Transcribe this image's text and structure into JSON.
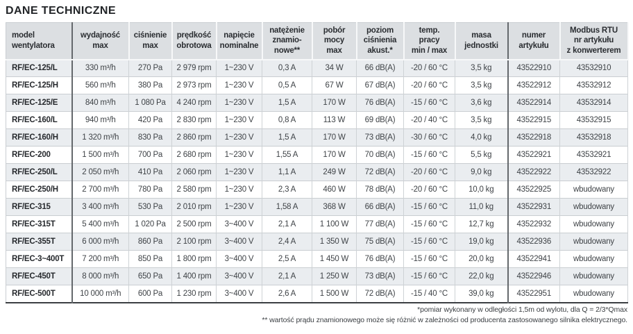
{
  "page": {
    "title": "DANE TECHNICZNE"
  },
  "colors": {
    "header_bg": "#dcdfe2",
    "row_stripe_bg": "#eaedf0",
    "section_divider": "#64686c",
    "table_bottom_border": "#3b3e42"
  },
  "table": {
    "columns": [
      {
        "key": "model",
        "label": "model\nwentylatora"
      },
      {
        "key": "wydajnosc-max",
        "label": "wydajność\nmax"
      },
      {
        "key": "cisnienie-max",
        "label": "ciśnienie\nmax"
      },
      {
        "key": "predkosc-obrotowa",
        "label": "prędkość\nobrotowa"
      },
      {
        "key": "napiecie-nominalne",
        "label": "napięcie\nnominalne"
      },
      {
        "key": "natezenie-znamionowe",
        "label": "natężenie\nznamio-\nnowe**"
      },
      {
        "key": "pobor-mocy-max",
        "label": "pobór\nmocy\nmax"
      },
      {
        "key": "poziom-cisnienia",
        "label": "poziom\nciśnienia\nakust.*"
      },
      {
        "key": "temp-pracy",
        "label": "temp.\npracy\nmin / max"
      },
      {
        "key": "masa-jednostki",
        "label": "masa\njednostki"
      },
      {
        "key": "numer-artykulu",
        "label": "numer\nartykułu"
      },
      {
        "key": "modbus-rtu",
        "label": "Modbus RTU\nnr artykułu\nz konwerterem"
      }
    ],
    "rows": [
      [
        "RF/EC-125/L",
        "330 m³/h",
        "270 Pa",
        "2 979 rpm",
        "1~230 V",
        "0,3 A",
        "34 W",
        "66 dB(A)",
        "-20 / 60 °C",
        "3,5 kg",
        "43522910",
        "43532910"
      ],
      [
        "RF/EC-125/H",
        "560 m³/h",
        "380 Pa",
        "2 973 rpm",
        "1~230 V",
        "0,5 A",
        "67 W",
        "67 dB(A)",
        "-20 / 60 °C",
        "3,5 kg",
        "43522912",
        "43532912"
      ],
      [
        "RF/EC-125/E",
        "840 m³/h",
        "1 080 Pa",
        "4 240 rpm",
        "1~230 V",
        "1,5 A",
        "170 W",
        "76 dB(A)",
        "-15 / 60 °C",
        "3,6 kg",
        "43522914",
        "43532914"
      ],
      [
        "RF/EC-160/L",
        "940 m³/h",
        "420 Pa",
        "2 830 rpm",
        "1~230 V",
        "0,8 A",
        "113 W",
        "69 dB(A)",
        "-20 / 40 °C",
        "3,5 kg",
        "43522915",
        "43532915"
      ],
      [
        "RF/EC-160/H",
        "1 320 m³/h",
        "830 Pa",
        "2 860 rpm",
        "1~230 V",
        "1,5 A",
        "170 W",
        "73 dB(A)",
        "-30 / 60 °C",
        "4,0 kg",
        "43522918",
        "43532918"
      ],
      [
        "RF/EC-200",
        "1 500 m³/h",
        "700 Pa",
        "2 680 rpm",
        "1~230 V",
        "1,55 A",
        "170 W",
        "70 dB(A)",
        "-15 / 60 °C",
        "5,5 kg",
        "43522921",
        "43532921"
      ],
      [
        "RF/EC-250/L",
        "2 050 m³/h",
        "410 Pa",
        "2 060 rpm",
        "1~230 V",
        "1,1 A",
        "249 W",
        "72 dB(A)",
        "-20 / 60 °C",
        "9,0 kg",
        "43522922",
        "43532922"
      ],
      [
        "RF/EC-250/H",
        "2 700 m³/h",
        "780 Pa",
        "2 580 rpm",
        "1~230 V",
        "2,3 A",
        "460 W",
        "78 dB(A)",
        "-20 / 60 °C",
        "10,0 kg",
        "43522925",
        "wbudowany"
      ],
      [
        "RF/EC-315",
        "3 400 m³/h",
        "530 Pa",
        "2 010 rpm",
        "1~230 V",
        "1,58 A",
        "368 W",
        "66 dB(A)",
        "-15 / 60 °C",
        "11,0 kg",
        "43522931",
        "wbudowany"
      ],
      [
        "RF/EC-315T",
        "5 400 m³/h",
        "1 020 Pa",
        "2 500 rpm",
        "3~400 V",
        "2,1 A",
        "1 100 W",
        "77 dB(A)",
        "-15 / 60 °C",
        "12,7 kg",
        "43522932",
        "wbudowany"
      ],
      [
        "RF/EC-355T",
        "6 000 m³/h",
        "860 Pa",
        "2 100 rpm",
        "3~400 V",
        "2,4 A",
        "1 350 W",
        "75 dB(A)",
        "-15 / 60 °C",
        "19,0 kg",
        "43522936",
        "wbudowany"
      ],
      [
        "RF/EC-3~400T",
        "7 200 m³/h",
        "850 Pa",
        "1 800 rpm",
        "3~400 V",
        "2,5 A",
        "1 450 W",
        "76 dB(A)",
        "-15 / 60 °C",
        "20,0 kg",
        "43522941",
        "wbudowany"
      ],
      [
        "RF/EC-450T",
        "8 000 m³/h",
        "650 Pa",
        "1 400 rpm",
        "3~400 V",
        "2,1 A",
        "1 250 W",
        "73 dB(A)",
        "-15 / 60 °C",
        "22,0 kg",
        "43522946",
        "wbudowany"
      ],
      [
        "RF/EC-500T",
        "10 000 m³/h",
        "600 Pa",
        "1 230 rpm",
        "3~400 V",
        "2,6 A",
        "1 500 W",
        "72 dB(A)",
        "-15 / 40 °C",
        "39,0 kg",
        "43522951",
        "wbudowany"
      ]
    ]
  },
  "footnotes": [
    "*pomiar wykonany w odległości 1,5m od wylotu, dla Q = 2/3*Qmax",
    "** wartość prądu znamionowego może się różnić w zależności od producenta zastosowanego silnika elektrycznego."
  ]
}
